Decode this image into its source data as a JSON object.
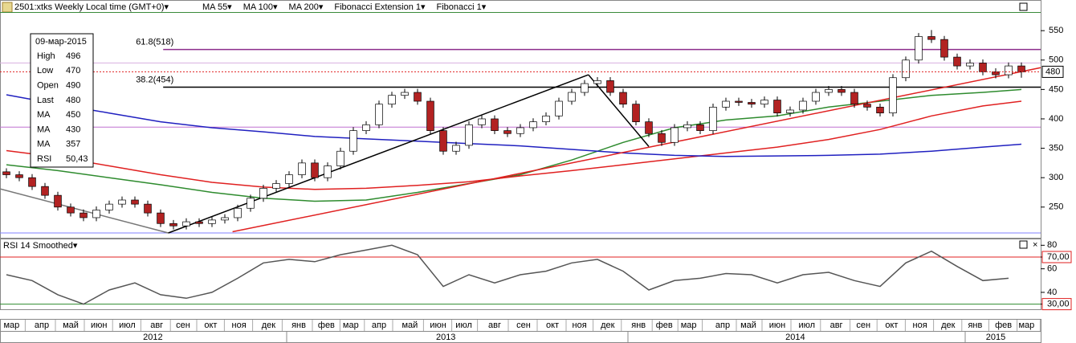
{
  "chart_data": {
    "type": "candlestick",
    "title": "2501:xtks Weekly Local time (GMT+0)▾",
    "indicators": [
      {
        "label": "MA 55▾",
        "color": "#2e8b2e"
      },
      {
        "label": "MA 100▾",
        "color": "#e02020"
      },
      {
        "label": "MA 200▾",
        "color": "#2020c0"
      },
      {
        "label": "Fibonacci Extension 1▾",
        "color": "#000000"
      },
      {
        "label": "Fibonacci 1▾",
        "color": "#000000"
      }
    ],
    "candles": [
      [
        310,
        316,
        299,
        305
      ],
      [
        305,
        311,
        294,
        300
      ],
      [
        300,
        306,
        279,
        285
      ],
      [
        285,
        291,
        264,
        270
      ],
      [
        270,
        276,
        244,
        250
      ],
      [
        250,
        256,
        234,
        240
      ],
      [
        240,
        246,
        226,
        232
      ],
      [
        232,
        251,
        226,
        245
      ],
      [
        245,
        261,
        239,
        255
      ],
      [
        255,
        268,
        249,
        262
      ],
      [
        262,
        268,
        249,
        255
      ],
      [
        255,
        261,
        234,
        240
      ],
      [
        240,
        246,
        216,
        222
      ],
      [
        222,
        228,
        212,
        218
      ],
      [
        218,
        231,
        212,
        225
      ],
      [
        225,
        231,
        216,
        222
      ],
      [
        222,
        234,
        216,
        228
      ],
      [
        228,
        238,
        222,
        232
      ],
      [
        232,
        254,
        226,
        248
      ],
      [
        248,
        271,
        242,
        265
      ],
      [
        265,
        288,
        259,
        282
      ],
      [
        282,
        296,
        276,
        290
      ],
      [
        290,
        311,
        284,
        305
      ],
      [
        305,
        331,
        299,
        325
      ],
      [
        325,
        331,
        294,
        300
      ],
      [
        300,
        326,
        294,
        320
      ],
      [
        320,
        351,
        314,
        345
      ],
      [
        345,
        386,
        339,
        380
      ],
      [
        380,
        396,
        374,
        390
      ],
      [
        390,
        431,
        384,
        425
      ],
      [
        425,
        446,
        419,
        440
      ],
      [
        440,
        451,
        434,
        445
      ],
      [
        445,
        451,
        424,
        430
      ],
      [
        430,
        436,
        374,
        380
      ],
      [
        380,
        386,
        339,
        345
      ],
      [
        345,
        361,
        339,
        355
      ],
      [
        355,
        396,
        349,
        390
      ],
      [
        390,
        406,
        384,
        400
      ],
      [
        400,
        406,
        374,
        380
      ],
      [
        380,
        386,
        369,
        375
      ],
      [
        375,
        391,
        369,
        385
      ],
      [
        385,
        401,
        379,
        395
      ],
      [
        395,
        411,
        389,
        405
      ],
      [
        405,
        436,
        399,
        430
      ],
      [
        430,
        451,
        424,
        445
      ],
      [
        445,
        466,
        439,
        460
      ],
      [
        460,
        471,
        454,
        465
      ],
      [
        465,
        471,
        439,
        445
      ],
      [
        445,
        451,
        419,
        425
      ],
      [
        425,
        431,
        389,
        395
      ],
      [
        395,
        401,
        369,
        375
      ],
      [
        375,
        381,
        354,
        360
      ],
      [
        360,
        391,
        354,
        385
      ],
      [
        385,
        396,
        379,
        390
      ],
      [
        390,
        396,
        374,
        380
      ],
      [
        380,
        426,
        374,
        420
      ],
      [
        420,
        436,
        414,
        430
      ],
      [
        430,
        436,
        422,
        428
      ],
      [
        428,
        434,
        419,
        425
      ],
      [
        425,
        438,
        419,
        432
      ],
      [
        432,
        438,
        404,
        410
      ],
      [
        410,
        421,
        404,
        415
      ],
      [
        415,
        436,
        409,
        430
      ],
      [
        430,
        451,
        424,
        445
      ],
      [
        445,
        456,
        439,
        450
      ],
      [
        450,
        456,
        439,
        445
      ],
      [
        445,
        451,
        419,
        425
      ],
      [
        425,
        431,
        414,
        420
      ],
      [
        420,
        426,
        404,
        410
      ],
      [
        410,
        476,
        404,
        470
      ],
      [
        470,
        506,
        464,
        500
      ],
      [
        500,
        546,
        494,
        540
      ],
      [
        540,
        551,
        529,
        535
      ],
      [
        535,
        541,
        499,
        505
      ],
      [
        505,
        511,
        484,
        490
      ],
      [
        490,
        501,
        484,
        495
      ],
      [
        495,
        501,
        474,
        480
      ],
      [
        480,
        486,
        469,
        475
      ],
      [
        475,
        496,
        469,
        490
      ],
      [
        490,
        496,
        470,
        480
      ]
    ],
    "up_color": "#ffffff",
    "down_color": "#b22222",
    "ma_x": [
      0,
      4,
      8,
      12,
      16,
      20,
      24,
      28,
      32,
      36,
      40,
      44,
      48,
      52,
      56,
      60,
      64,
      68,
      72,
      76,
      79
    ],
    "series": [
      {
        "color": "#2e8b2e",
        "values": [
          322,
          312,
          300,
          288,
          275,
          265,
          260,
          262,
          275,
          290,
          305,
          330,
          360,
          385,
          398,
          405,
          420,
          430,
          440,
          445,
          450
        ]
      },
      {
        "color": "#e02020",
        "values": [
          346,
          335,
          320,
          305,
          292,
          284,
          280,
          282,
          287,
          293,
          303,
          312,
          322,
          332,
          342,
          352,
          365,
          382,
          405,
          422,
          430
        ]
      },
      {
        "color": "#2020c0",
        "values": [
          441,
          425,
          410,
          395,
          385,
          378,
          370,
          366,
          362,
          358,
          354,
          348,
          342,
          338,
          336,
          337,
          338,
          340,
          345,
          352,
          357
        ]
      }
    ],
    "trend_lines": [
      {
        "color": "#777777",
        "x": [
          -0.5,
          12.6
        ],
        "values": [
          281,
          206
        ]
      },
      {
        "color": "#000000",
        "x": [
          12.6,
          45.3
        ],
        "values": [
          206,
          475
        ]
      },
      {
        "color": "#000000",
        "x": [
          45.3,
          50.0
        ],
        "values": [
          475,
          353
        ]
      },
      {
        "color": "#e02020",
        "x": [
          17.6,
          80.5
        ],
        "values": [
          208,
          487
        ]
      }
    ],
    "fib_levels": [
      {
        "label": "61.8(518)",
        "value": 518,
        "x": 12.2,
        "color": "#8b2c8b"
      },
      {
        "label": "38.2(454)",
        "value": 454,
        "x": 12.2,
        "color": "#000000"
      }
    ],
    "hlines": [
      {
        "value": 581,
        "color": "#3a8a3a"
      },
      {
        "value": 495,
        "color": "#d8b0e0"
      },
      {
        "value": 386,
        "color": "#c070d0"
      },
      {
        "value": 206,
        "color": "#8080ff"
      }
    ],
    "last_price": 480,
    "xlim": [
      -0.5,
      80.5
    ],
    "ylim": [
      206,
      583
    ],
    "yticks": [
      250,
      300,
      350,
      400,
      450,
      500,
      550
    ],
    "xticks": [
      {
        "value": 0.4,
        "label": "мар"
      },
      {
        "value": 2.75,
        "label": "апр"
      },
      {
        "value": 5.0,
        "label": "май"
      },
      {
        "value": 7.2,
        "label": "июн"
      },
      {
        "value": 9.4,
        "label": "июл"
      },
      {
        "value": 11.7,
        "label": "авг"
      },
      {
        "value": 13.75,
        "label": "сен"
      },
      {
        "value": 15.9,
        "label": "окт"
      },
      {
        "value": 18.1,
        "label": "ноя"
      },
      {
        "value": 20.4,
        "label": "дек"
      },
      {
        "value": 22.75,
        "label": "янв"
      },
      {
        "value": 24.9,
        "label": "фев"
      },
      {
        "value": 26.8,
        "label": "мар"
      },
      {
        "value": 29.0,
        "label": "апр"
      },
      {
        "value": 31.4,
        "label": "май"
      },
      {
        "value": 33.6,
        "label": "июн"
      },
      {
        "value": 35.6,
        "label": "июл"
      },
      {
        "value": 38.0,
        "label": "авг"
      },
      {
        "value": 40.25,
        "label": "сен"
      },
      {
        "value": 42.5,
        "label": "окт"
      },
      {
        "value": 44.6,
        "label": "ноя"
      },
      {
        "value": 46.8,
        "label": "дек"
      },
      {
        "value": 49.2,
        "label": "янв"
      },
      {
        "value": 51.2,
        "label": "фев"
      },
      {
        "value": 53.1,
        "label": "мар"
      },
      {
        "value": 55.75,
        "label": "апр"
      },
      {
        "value": 57.75,
        "label": "май"
      },
      {
        "value": 60.0,
        "label": "июн"
      },
      {
        "value": 62.3,
        "label": "июл"
      },
      {
        "value": 64.6,
        "label": "авг"
      },
      {
        "value": 66.7,
        "label": "сен"
      },
      {
        "value": 68.9,
        "label": "окт"
      },
      {
        "value": 71.1,
        "label": "ноя"
      },
      {
        "value": 73.3,
        "label": "дек"
      },
      {
        "value": 75.4,
        "label": "янв"
      },
      {
        "value": 77.6,
        "label": "фев"
      },
      {
        "value": 79.4,
        "label": "мар"
      }
    ],
    "years": [
      {
        "value": 11.4,
        "label": "2012"
      },
      {
        "value": 34.2,
        "label": "2013"
      },
      {
        "value": 61.4,
        "label": "2014"
      },
      {
        "value": 77.0,
        "label": "2015"
      }
    ],
    "info": {
      "date": "09-мар-2015",
      "rows": [
        {
          "label": "High",
          "value": 496,
          "color": "#000000"
        },
        {
          "label": "Low",
          "value": 470,
          "color": "#000000"
        },
        {
          "label": "Open",
          "value": 490,
          "color": "#000000"
        },
        {
          "label": "Last",
          "value": 480,
          "color": "#000000"
        },
        {
          "label": "MA",
          "value": 450,
          "color": "#2e8b2e"
        },
        {
          "label": "MA",
          "value": 430,
          "color": "#e02020"
        },
        {
          "label": "MA",
          "value": 357,
          "color": "#2020c0"
        },
        {
          "label": "RSI",
          "value": 50.43,
          "value_label": "50,43",
          "color": "#000000"
        }
      ]
    },
    "rsi": {
      "title": "RSI 14 Smoothed▾",
      "color": "#555555",
      "x": [
        0,
        2,
        4,
        6,
        8,
        10,
        12,
        14,
        16,
        18,
        20,
        22,
        24,
        26,
        28,
        30,
        32,
        34,
        36,
        38,
        40,
        42,
        44,
        46,
        48,
        50,
        52,
        54,
        56,
        58,
        60,
        62,
        64,
        66,
        68,
        70,
        72,
        74,
        76,
        78
      ],
      "values": [
        55,
        50,
        38,
        30,
        42,
        48,
        38,
        35,
        40,
        52,
        65,
        68,
        66,
        72,
        76,
        80,
        72,
        45,
        55,
        48,
        55,
        58,
        65,
        68,
        58,
        42,
        50,
        52,
        56,
        55,
        48,
        55,
        57,
        50,
        45,
        65,
        75,
        62,
        50,
        52
      ],
      "ylim": [
        27,
        85
      ],
      "yticks": [
        {
          "value": 30,
          "label": "30,00"
        },
        40,
        60,
        {
          "value": 70,
          "label": "70,00"
        },
        80
      ],
      "levels": [
        {
          "value": 70,
          "color": "#e02020"
        },
        {
          "value": 30,
          "color": "#2e8b2e"
        }
      ]
    }
  }
}
